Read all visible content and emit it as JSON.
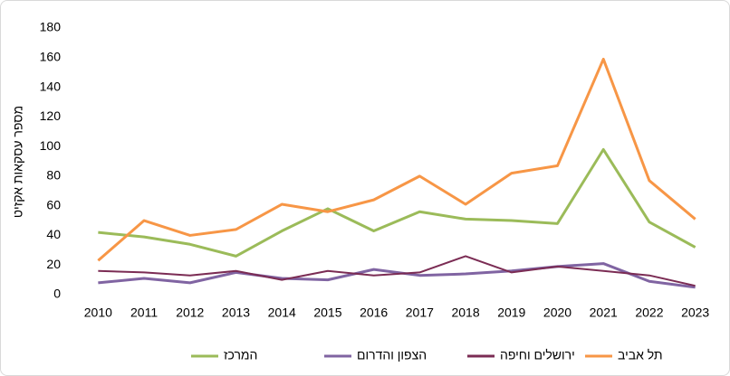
{
  "chart_data": {
    "type": "line",
    "y_label": "מספר עסקאות אקזיט",
    "categories": [
      "2010",
      "2011",
      "2012",
      "2013",
      "2014",
      "2015",
      "2016",
      "2017",
      "2018",
      "2019",
      "2020",
      "2021",
      "2022",
      "2023"
    ],
    "series": [
      {
        "name": "המרכז",
        "color": "#9bbb59",
        "values": [
          42,
          39,
          34,
          26,
          43,
          58,
          43,
          56,
          51,
          50,
          48,
          98,
          49,
          32
        ]
      },
      {
        "name": "הצפון והדרום",
        "color": "#8064a2",
        "values": [
          8,
          11,
          8,
          15,
          11,
          10,
          17,
          13,
          14,
          16,
          19,
          21,
          9,
          5
        ]
      },
      {
        "name": "ירושלים וחיפה",
        "color": "#7b2c54",
        "values": [
          16,
          15,
          13,
          16,
          10,
          16,
          13,
          15,
          26,
          15,
          19,
          16,
          13,
          6
        ]
      },
      {
        "name": "תל אביב",
        "color": "#f79646",
        "values": [
          23,
          50,
          40,
          44,
          61,
          56,
          64,
          80,
          61,
          82,
          87,
          159,
          77,
          51
        ]
      }
    ],
    "ylim": [
      0,
      180
    ],
    "yticks": [
      0,
      20,
      40,
      60,
      80,
      100,
      120,
      140,
      160,
      180
    ],
    "grid": false
  }
}
